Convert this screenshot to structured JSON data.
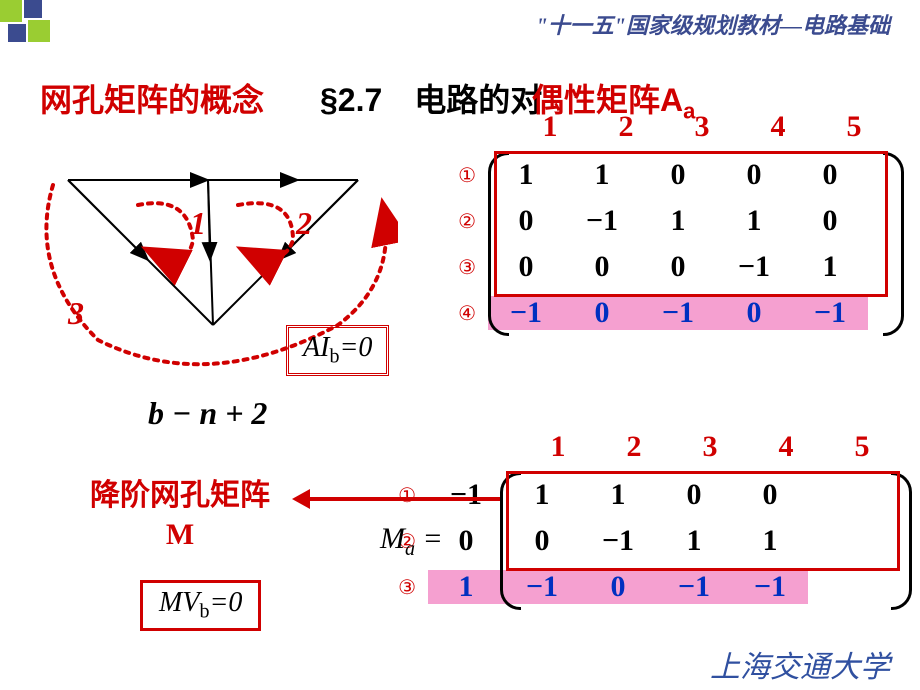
{
  "header": "\"十一五\"国家级规划教材—电路基础",
  "title_red": "网孔矩阵的概念",
  "title_section": "§2.7　电路的对",
  "title_overlay_prefix": "偶性",
  "title_overlay_main": "矩阵A",
  "title_overlay_sub": "a",
  "mesh_labels": {
    "m1": "1",
    "m2": "2",
    "m3": "3"
  },
  "ai_box": {
    "A": "AI",
    "sub": "b",
    "eq": "=0"
  },
  "bn2": "b − n + 2",
  "matrix1": {
    "cols": [
      "1",
      "2",
      "3",
      "4",
      "5"
    ],
    "rows": [
      {
        "lbl": "①",
        "vals": [
          "1",
          "1",
          "0",
          "0",
          "0"
        ],
        "hl": false
      },
      {
        "lbl": "②",
        "vals": [
          "0",
          "−1",
          "1",
          "1",
          "0"
        ],
        "hl": false
      },
      {
        "lbl": "③",
        "vals": [
          "0",
          "0",
          "0",
          "−1",
          "1"
        ],
        "hl": false
      },
      {
        "lbl": "④",
        "vals": [
          "−1",
          "0",
          "−1",
          "0",
          "−1"
        ],
        "hl": true
      }
    ]
  },
  "matrix2": {
    "prefix": "M",
    "prefix_sub": "a",
    "eq": "=",
    "cols": [
      "1",
      "2",
      "3",
      "4",
      "5"
    ],
    "rows": [
      {
        "lbl": "①",
        "vals": [
          "−1",
          "1",
          "1",
          "0",
          "0"
        ],
        "hl": false
      },
      {
        "lbl": "②",
        "vals": [
          "0",
          "0",
          "−1",
          "1",
          "1"
        ],
        "hl": false
      },
      {
        "lbl": "③",
        "vals": [
          "1",
          "−1",
          "0",
          "−1",
          "−1"
        ],
        "hl": true
      }
    ]
  },
  "arrow_label_line1": "降阶网孔矩阵",
  "arrow_label_line2": "M",
  "mv_box": {
    "M": "MV",
    "sub": "b",
    "eq": "=0"
  },
  "footer": "上海交通大学",
  "colors": {
    "red": "#d00000",
    "blue": "#0030c0",
    "pink": "#f5a0d0",
    "navy": "#3b4b8f"
  }
}
